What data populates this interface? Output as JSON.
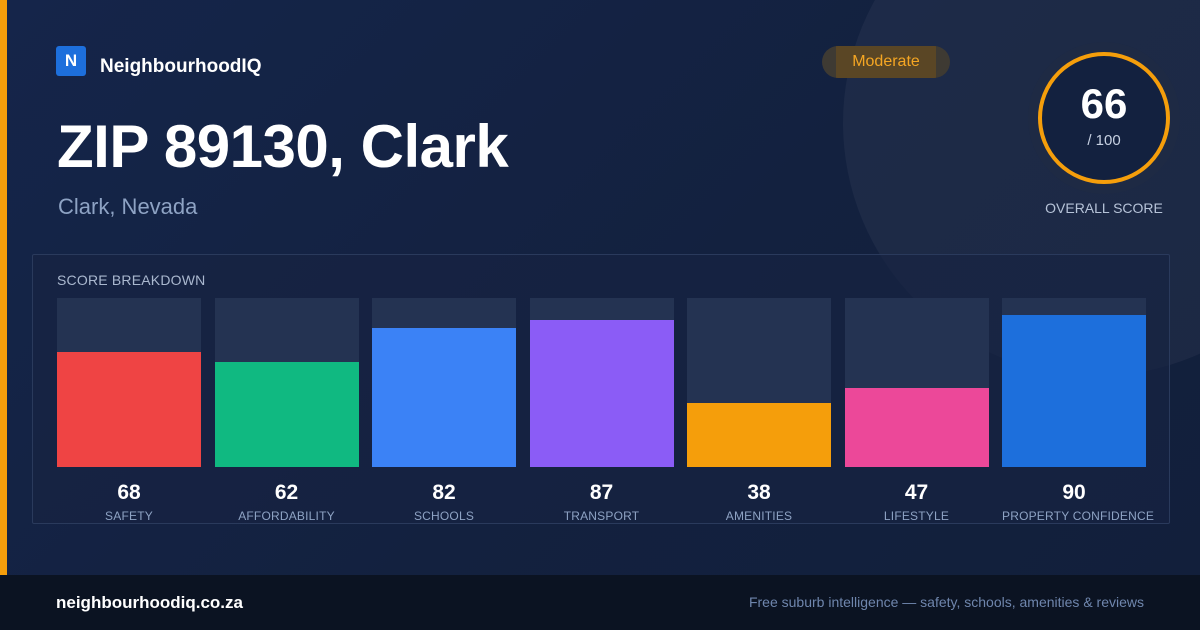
{
  "brand": {
    "logo_letter": "N",
    "name": "NeighbourhoodIQ"
  },
  "badge": {
    "label": "Moderate",
    "color": "#f5a623"
  },
  "location": {
    "title": "ZIP 89130, Clark",
    "subtitle": "Clark, Nevada"
  },
  "overall": {
    "score": "66",
    "max": "/ 100",
    "label": "OVERALL SCORE",
    "ring_color": "#f59e0b"
  },
  "breakdown": {
    "title": "SCORE BREAKDOWN",
    "scale_max": 100,
    "items": [
      {
        "label": "SAFETY",
        "value": 68,
        "color": "#ef4444"
      },
      {
        "label": "AFFORDABILITY",
        "value": 62,
        "color": "#10b981"
      },
      {
        "label": "SCHOOLS",
        "value": 82,
        "color": "#3b82f6"
      },
      {
        "label": "TRANSPORT",
        "value": 87,
        "color": "#8b5cf6"
      },
      {
        "label": "AMENITIES",
        "value": 38,
        "color": "#f59e0b"
      },
      {
        "label": "LIFESTYLE",
        "value": 47,
        "color": "#ec4899"
      },
      {
        "label": "PROPERTY CONFIDENCE",
        "value": 90,
        "color": "#1d6fdc"
      }
    ]
  },
  "footer": {
    "site": "neighbourhoodiq.co.za",
    "tagline": "Free suburb intelligence — safety, schools, amenities & reviews"
  }
}
